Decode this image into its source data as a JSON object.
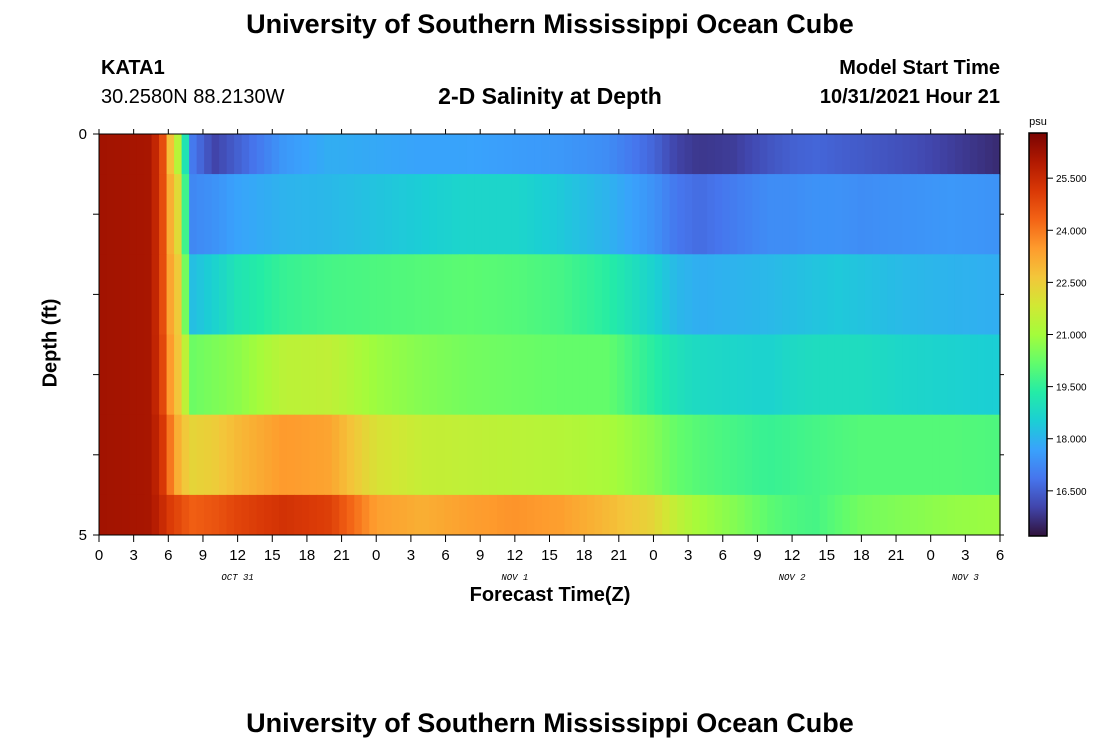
{
  "header": {
    "title": "University of Southern Mississippi Ocean Cube",
    "station_id": "KATA1",
    "station_coords": "30.2580N  88.2130W",
    "subtitle": "2-D Salinity at Depth",
    "model_start_label": "Model Start Time",
    "model_start_time": "10/31/2021 Hour 21"
  },
  "footer": {
    "title": "University of Southern Mississippi Ocean Cube"
  },
  "chart_data": {
    "type": "heatmap",
    "title": "2-D Salinity at Depth",
    "xlabel": "Forecast Time(Z)",
    "ylabel": "Depth (ft)",
    "y_ticks": [
      "0",
      "5"
    ],
    "ylim": [
      0,
      5
    ],
    "x_tick_labels": [
      "0",
      "3",
      "6",
      "9",
      "12",
      "15",
      "18",
      "21",
      "0",
      "3",
      "6",
      "9",
      "12",
      "15",
      "18",
      "21",
      "0",
      "3",
      "6",
      "9",
      "12",
      "15",
      "18",
      "21",
      "0",
      "3",
      "6"
    ],
    "x_range_hours": [
      0,
      78
    ],
    "day_labels": [
      {
        "label": "OCT 31",
        "hour": 12
      },
      {
        "label": "NOV 1",
        "hour": 36
      },
      {
        "label": "NOV 2",
        "hour": 60
      },
      {
        "label": "NOV 3",
        "hour": 75
      }
    ],
    "colorbar": {
      "unit": "psu",
      "min": 15.2,
      "max": 26.8,
      "ticks": [
        "25.500",
        "24.000",
        "22.500",
        "21.000",
        "19.500",
        "18.000",
        "16.500"
      ],
      "colors": [
        "#30123b",
        "#4145ab",
        "#4675ed",
        "#39a2fc",
        "#1bcfd4",
        "#24eca6",
        "#61fc6c",
        "#a4fc3b",
        "#d1e834",
        "#f3c63a",
        "#fe9b2d",
        "#f36315",
        "#d93806",
        "#b11901",
        "#7a0402"
      ]
    },
    "depth_levels": [
      "0-0.5",
      "0.5-1.5",
      "1.5-2.5",
      "2.5-3.5",
      "3.5-4.5",
      "4.5-5"
    ],
    "hours": [
      0,
      4.5,
      5.5,
      6.3,
      7,
      8,
      10,
      12,
      16,
      20,
      24,
      28,
      32,
      36,
      40,
      44,
      48,
      50,
      52,
      55,
      58,
      60,
      62,
      64,
      66,
      70,
      74,
      78
    ],
    "series": [
      {
        "name": "0-0.5 ft",
        "values": [
          26.2,
          26.1,
          24.8,
          22.4,
          21.0,
          17.0,
          16.0,
          16.5,
          17.5,
          17.9,
          17.8,
          17.7,
          17.7,
          17.6,
          17.5,
          17.3,
          16.6,
          16.0,
          15.8,
          15.9,
          16.3,
          16.5,
          16.6,
          16.5,
          16.4,
          16.2,
          15.9,
          15.6
        ]
      },
      {
        "name": "0.5-1.5 ft",
        "values": [
          26.2,
          26.1,
          24.8,
          22.8,
          22.0,
          17.2,
          17.4,
          17.7,
          18.0,
          18.1,
          18.3,
          18.5,
          18.7,
          18.7,
          18.4,
          18.0,
          17.4,
          16.9,
          16.7,
          17.0,
          17.3,
          17.3,
          17.4,
          17.4,
          17.3,
          17.4,
          17.5,
          17.4
        ]
      },
      {
        "name": "1.5-2.5 ft",
        "values": [
          26.2,
          26.1,
          24.8,
          23.0,
          22.4,
          18.2,
          18.6,
          19.1,
          19.6,
          19.8,
          19.9,
          20.0,
          20.1,
          20.0,
          19.8,
          19.4,
          18.6,
          18.1,
          17.9,
          18.0,
          18.1,
          18.2,
          18.3,
          18.4,
          18.3,
          18.1,
          18.0,
          17.9
        ]
      },
      {
        "name": "2.5-3.5 ft",
        "values": [
          26.2,
          26.1,
          24.9,
          23.2,
          22.5,
          20.3,
          20.5,
          20.7,
          21.4,
          21.5,
          20.9,
          20.6,
          20.4,
          20.3,
          20.2,
          20.2,
          19.4,
          19.0,
          18.8,
          18.7,
          18.6,
          18.8,
          18.9,
          18.9,
          18.9,
          18.7,
          18.6,
          18.5
        ]
      },
      {
        "name": "3.5-4.5 ft",
        "values": [
          26.2,
          26.1,
          25.2,
          23.8,
          22.9,
          22.3,
          22.5,
          22.9,
          23.5,
          23.3,
          22.0,
          21.6,
          21.5,
          21.4,
          21.3,
          21.1,
          20.6,
          20.2,
          20.0,
          19.8,
          19.6,
          19.7,
          19.8,
          19.9,
          20.0,
          20.0,
          20.0,
          19.9
        ]
      },
      {
        "name": "4.5-5 ft",
        "values": [
          26.2,
          26.1,
          25.5,
          25.0,
          24.8,
          24.4,
          24.6,
          24.9,
          25.3,
          25.0,
          23.4,
          23.1,
          23.4,
          23.6,
          23.4,
          22.9,
          22.3,
          21.5,
          21.0,
          20.6,
          20.1,
          19.9,
          19.8,
          20.1,
          20.4,
          20.6,
          20.8,
          20.9
        ]
      }
    ]
  }
}
